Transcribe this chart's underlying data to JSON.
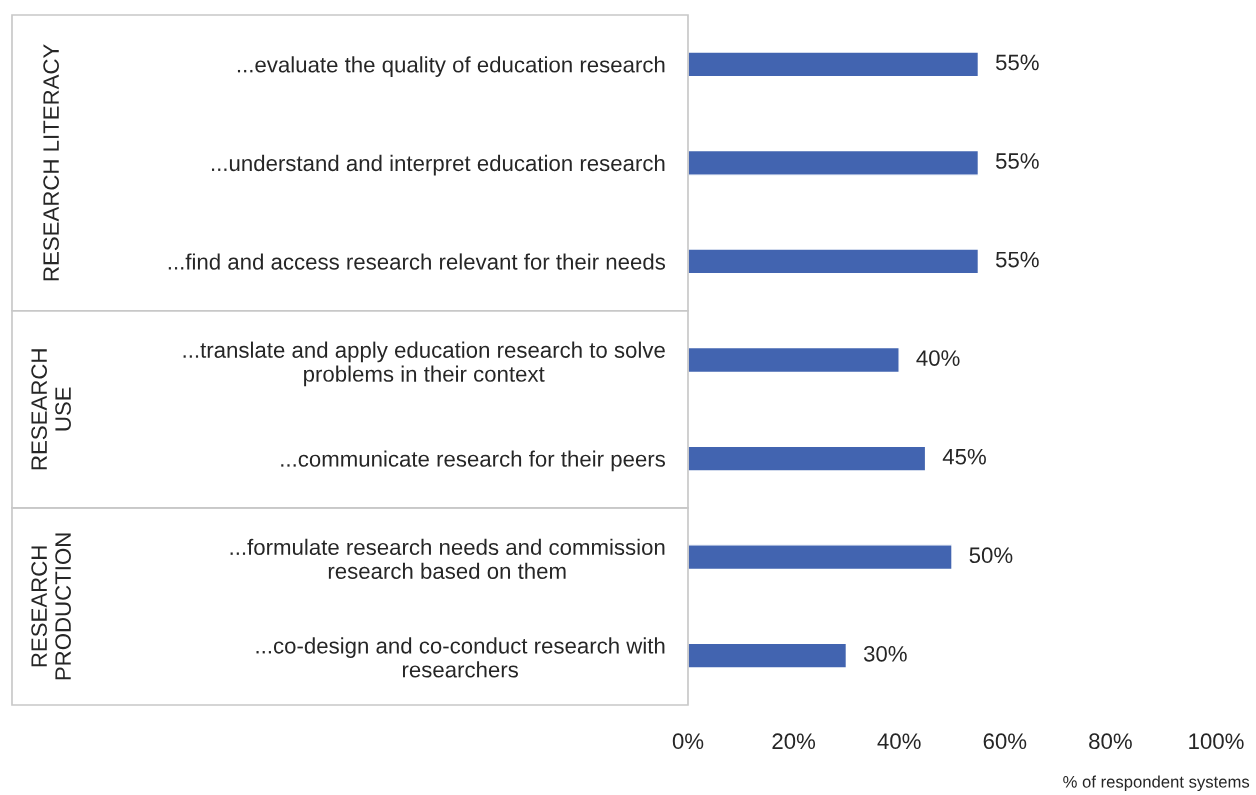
{
  "chart_data": {
    "type": "bar",
    "orientation": "horizontal",
    "xlabel": "% of respondent systems",
    "categories": [
      "...evaluate the quality of education research",
      "...understand and interpret education research",
      "...find and access research relevant for their needs",
      "...translate and apply education research to solve\nproblems in their context",
      "...communicate research for their peers",
      "...formulate research needs and commission\nresearch based on them",
      "...co-design and co-conduct research with\nresearchers"
    ],
    "values": [
      55,
      55,
      55,
      40,
      45,
      50,
      30
    ],
    "value_labels": [
      "55%",
      "55%",
      "55%",
      "40%",
      "45%",
      "50%",
      "30%"
    ],
    "color": "#4264b0",
    "xlim": [
      0,
      100
    ],
    "xticks": [
      {
        "value": 0,
        "label": "0%"
      },
      {
        "value": 20,
        "label": "20%"
      },
      {
        "value": 40,
        "label": "40%"
      },
      {
        "value": 60,
        "label": "60%"
      },
      {
        "value": 80,
        "label": "80%"
      },
      {
        "value": 100,
        "label": "100%"
      }
    ],
    "annotations": [
      "RESEARCH LITERACY",
      "RESEARCH\nUSE",
      "RESEARCH\nPRODUCTION"
    ],
    "grid": false,
    "legend": false
  }
}
